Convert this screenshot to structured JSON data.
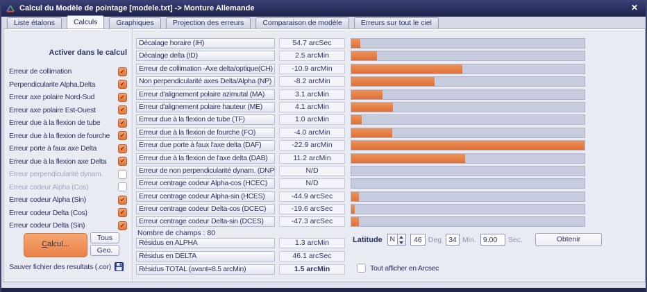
{
  "window": {
    "title": "Calcul du Modèle de pointage [modele.txt] -> Monture Allemande",
    "close_glyph": "✕"
  },
  "tabs": [
    {
      "name": "tab-liste-etalons",
      "label": "Liste étalons",
      "active": false
    },
    {
      "name": "tab-calculs",
      "label": "Calculs",
      "active": true
    },
    {
      "name": "tab-graphiques",
      "label": "Graphiques",
      "active": false
    },
    {
      "name": "tab-projection-des-erreurs",
      "label": "Projection des erreurs",
      "active": false
    },
    {
      "name": "tab-comparaison-de-modele",
      "label": "Comparaison de modèle",
      "active": false
    },
    {
      "name": "tab-erreurs-sur-tout-le-ciel",
      "label": "Erreurs sur tout le ciel",
      "active": false
    }
  ],
  "left_panel": {
    "header": "Activer dans le calcul",
    "check_glyph": "✔",
    "checkboxes": [
      {
        "label": "Erreur de collimation",
        "checked": true,
        "enabled": true
      },
      {
        "label": "Perpendicularite Alpha,Delta",
        "checked": true,
        "enabled": true
      },
      {
        "label": "Erreur axe polaire Nord-Sud",
        "checked": true,
        "enabled": true
      },
      {
        "label": "Erreur axe polaire Est-Ouest",
        "checked": true,
        "enabled": true
      },
      {
        "label": "Erreur due à la flexion de tube",
        "checked": true,
        "enabled": true
      },
      {
        "label": "Erreur due à la flexion de fourche",
        "checked": true,
        "enabled": true
      },
      {
        "label": "Erreur porte à faux axe Delta",
        "checked": true,
        "enabled": true
      },
      {
        "label": "Erreur due à la flexion axe Delta",
        "checked": true,
        "enabled": true
      },
      {
        "label": "Erreur perpendicularité dynam.",
        "checked": false,
        "enabled": false
      },
      {
        "label": "Erreur codeur Alpha (Cos)",
        "checked": false,
        "enabled": false
      },
      {
        "label": "Erreur codeur Alpha (Sin)",
        "checked": true,
        "enabled": true
      },
      {
        "label": "Erreur codeur Delta (Cos)",
        "checked": true,
        "enabled": true
      },
      {
        "label": "Erreur codeur Delta (Sin)",
        "checked": true,
        "enabled": true
      }
    ],
    "calcul_button": "Calcul...",
    "tous_button": "Tous",
    "geo_button": "Geo.",
    "save_label": "Sauver fichier des resultats (.cor)"
  },
  "terms": {
    "rows": [
      {
        "label": "Décalage horaire (IH)",
        "value": "54.7 arcSec",
        "bar_pct": 4.0
      },
      {
        "label": "Décalage delta (ID)",
        "value": "2.5 arcMin",
        "bar_pct": 10.9
      },
      {
        "label": "Erreur de collimation -Axe delta/optique(CH)",
        "value": "-10.9 arcMin",
        "bar_pct": 47.6
      },
      {
        "label": "Non perpendicularité axes Delta/Alpha (NP)",
        "value": "-8.2 arcMin",
        "bar_pct": 35.8
      },
      {
        "label": "Erreur d'alignement polaire azimutal (MA)",
        "value": "3.1 arcMin",
        "bar_pct": 13.5
      },
      {
        "label": "Erreur d'alignement polaire hauteur (ME)",
        "value": "4.1 arcMin",
        "bar_pct": 17.9
      },
      {
        "label": "Erreur due à la flexion de tube (TF)",
        "value": "1.0 arcMin",
        "bar_pct": 4.4
      },
      {
        "label": "Erreur due à la flexion de fourche (FO)",
        "value": "-4.0 arcMin",
        "bar_pct": 17.5
      },
      {
        "label": "Erreur due porte à faux l'axe delta (DAF)",
        "value": "-22.9 arcMin",
        "bar_pct": 100
      },
      {
        "label": "Erreur due à la flexion de l'axe delta (DAB)",
        "value": "11.2 arcMin",
        "bar_pct": 48.9
      },
      {
        "label": "Erreur de non perpendicularité dynam. (DNP)",
        "value": "N/D",
        "bar_pct": 0
      },
      {
        "label": "Erreur centrage codeur Alpha-cos (HCEC)",
        "value": "N/D",
        "bar_pct": 0
      },
      {
        "label": "Erreur centrage codeur Alpha-sin (HCES)",
        "value": "-44.9 arcSec",
        "bar_pct": 3.3
      },
      {
        "label": "Erreur centrage codeur Delta-cos (DCEC)",
        "value": "-19.6 arcSec",
        "bar_pct": 1.4
      },
      {
        "label": "Erreur centrage codeur Delta-sin (DCES)",
        "value": "-47.3 arcSec",
        "bar_pct": 3.4
      }
    ],
    "fields_count_label": "Nombre de champs :",
    "fields_count": "80",
    "residuals": [
      {
        "label": "Résidus en ALPHA",
        "value": "1.3 arcMin",
        "bold": false
      },
      {
        "label": "Résidus en DELTA",
        "value": "46.1 arcSec",
        "bold": false
      },
      {
        "label": "Résidus TOTAL (avant=8.5 arcMin)",
        "value": "1.5 arcMin",
        "bold": true
      }
    ]
  },
  "latitude": {
    "label": "Latitude",
    "hemisphere": "N",
    "deg_value": "46",
    "deg_label": "Deg",
    "min_value": "34",
    "min_label": "Min.",
    "sec_value": "9.00",
    "sec_label": "Sec.",
    "obtenir_button": "Obtenir",
    "arcsec_checkbox_label": "Tout afficher en Arcsec",
    "arcsec_checked": false
  },
  "colors": {
    "accent_orange": "#DE7038",
    "bar_track": "#C7CBDE",
    "titlebar_navy": "#2A2F5E",
    "text_navy": "#2D3364"
  }
}
